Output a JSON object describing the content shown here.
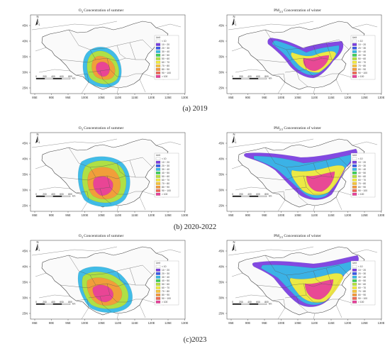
{
  "captions": [
    "(a) 2019",
    "(b) 2020-2022",
    "(c)2023"
  ],
  "column_titles": {
    "left": {
      "pre": "O",
      "sub": "3",
      "post": " Concentration of summer"
    },
    "right": {
      "pre": "PM",
      "sub": "2.5",
      "post": " Concentration of winter"
    }
  },
  "lon_ticks": [
    "85E",
    "90E",
    "95E",
    "100E",
    "105E",
    "110E",
    "115E",
    "120E",
    "125E",
    "130E"
  ],
  "lat_ticks": [
    "45N",
    "40N",
    "35N",
    "30N",
    "25N"
  ],
  "north_label": "N",
  "scale_bar": {
    "values": [
      "0",
      "200",
      "400",
      "600",
      "800"
    ],
    "unit": "km"
  },
  "legend": {
    "title": "Unit",
    "labels": [
      "< 10",
      "10 ~ 20",
      "20 ~ 30",
      "30 ~ 40",
      "40 ~ 50",
      "50 ~ 60",
      "60 ~ 70",
      "70 ~ 80",
      "80 ~ 90",
      "90 ~ 100",
      "> 100"
    ],
    "colors": [
      "#ffffff",
      "#7b3fe0",
      "#3a5be8",
      "#37b8e6",
      "#3fd15a",
      "#b5e23c",
      "#f5ec3c",
      "#f7c43a",
      "#f49a3a",
      "#ef6a55",
      "#e8409a"
    ]
  }
}
